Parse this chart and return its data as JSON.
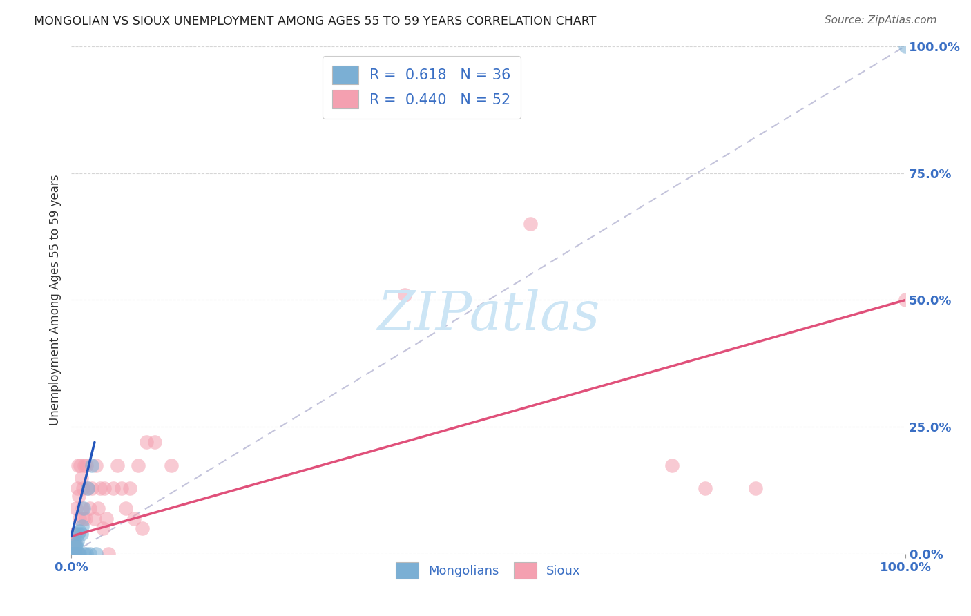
{
  "title": "MONGOLIAN VS SIOUX UNEMPLOYMENT AMONG AGES 55 TO 59 YEARS CORRELATION CHART",
  "source": "Source: ZipAtlas.com",
  "ylabel_label": "Unemployment Among Ages 55 to 59 years",
  "mongolian_R": 0.618,
  "mongolian_N": 36,
  "sioux_R": 0.44,
  "sioux_N": 52,
  "mongolian_color": "#7bafd4",
  "sioux_color": "#f4a0b0",
  "mongolian_line_color": "#2255bb",
  "sioux_line_color": "#e0507a",
  "ref_line_color": "#aaaacc",
  "watermark_color": "#cce5f5",
  "xlim": [
    0.0,
    1.0
  ],
  "ylim": [
    0.0,
    1.0
  ],
  "mongolian_scatter_x": [
    0.0,
    0.0,
    0.0,
    0.0,
    0.0,
    0.0,
    0.0,
    0.0,
    0.001,
    0.001,
    0.002,
    0.002,
    0.003,
    0.003,
    0.003,
    0.004,
    0.005,
    0.005,
    0.005,
    0.006,
    0.006,
    0.007,
    0.008,
    0.009,
    0.01,
    0.01,
    0.012,
    0.013,
    0.015,
    0.016,
    0.018,
    0.02,
    0.022,
    0.025,
    0.03,
    1.0
  ],
  "mongolian_scatter_y": [
    0.0,
    0.0,
    0.0,
    0.0,
    0.0,
    0.0,
    0.0,
    0.0,
    0.0,
    0.0,
    0.0,
    0.0,
    0.0,
    0.0,
    0.0,
    0.0,
    0.0,
    0.0,
    0.015,
    0.015,
    0.02,
    0.025,
    0.04,
    0.0,
    0.0,
    0.045,
    0.04,
    0.055,
    0.09,
    0.0,
    0.0,
    0.13,
    0.0,
    0.175,
    0.0,
    1.0
  ],
  "sioux_scatter_x": [
    0.0,
    0.001,
    0.002,
    0.002,
    0.003,
    0.003,
    0.004,
    0.004,
    0.005,
    0.006,
    0.006,
    0.007,
    0.008,
    0.008,
    0.009,
    0.01,
    0.011,
    0.012,
    0.013,
    0.014,
    0.015,
    0.016,
    0.017,
    0.018,
    0.02,
    0.022,
    0.025,
    0.028,
    0.03,
    0.032,
    0.035,
    0.038,
    0.04,
    0.042,
    0.045,
    0.05,
    0.055,
    0.06,
    0.065,
    0.07,
    0.075,
    0.08,
    0.085,
    0.09,
    0.1,
    0.12,
    0.4,
    0.55,
    0.72,
    0.76,
    0.82,
    1.0
  ],
  "sioux_scatter_y": [
    0.0,
    0.0,
    0.0,
    0.02,
    0.0,
    0.04,
    0.0,
    0.025,
    0.04,
    0.09,
    0.0,
    0.13,
    0.175,
    0.0,
    0.115,
    0.07,
    0.175,
    0.15,
    0.09,
    0.13,
    0.07,
    0.175,
    0.07,
    0.175,
    0.13,
    0.09,
    0.13,
    0.07,
    0.175,
    0.09,
    0.13,
    0.05,
    0.13,
    0.07,
    0.0,
    0.13,
    0.175,
    0.13,
    0.09,
    0.13,
    0.07,
    0.175,
    0.05,
    0.22,
    0.22,
    0.175,
    0.51,
    0.65,
    0.175,
    0.13,
    0.13,
    0.5
  ],
  "mongolian_line_x": [
    0.0,
    0.028
  ],
  "sioux_line_x": [
    0.0,
    1.0
  ],
  "sioux_line_y": [
    0.035,
    0.5
  ]
}
